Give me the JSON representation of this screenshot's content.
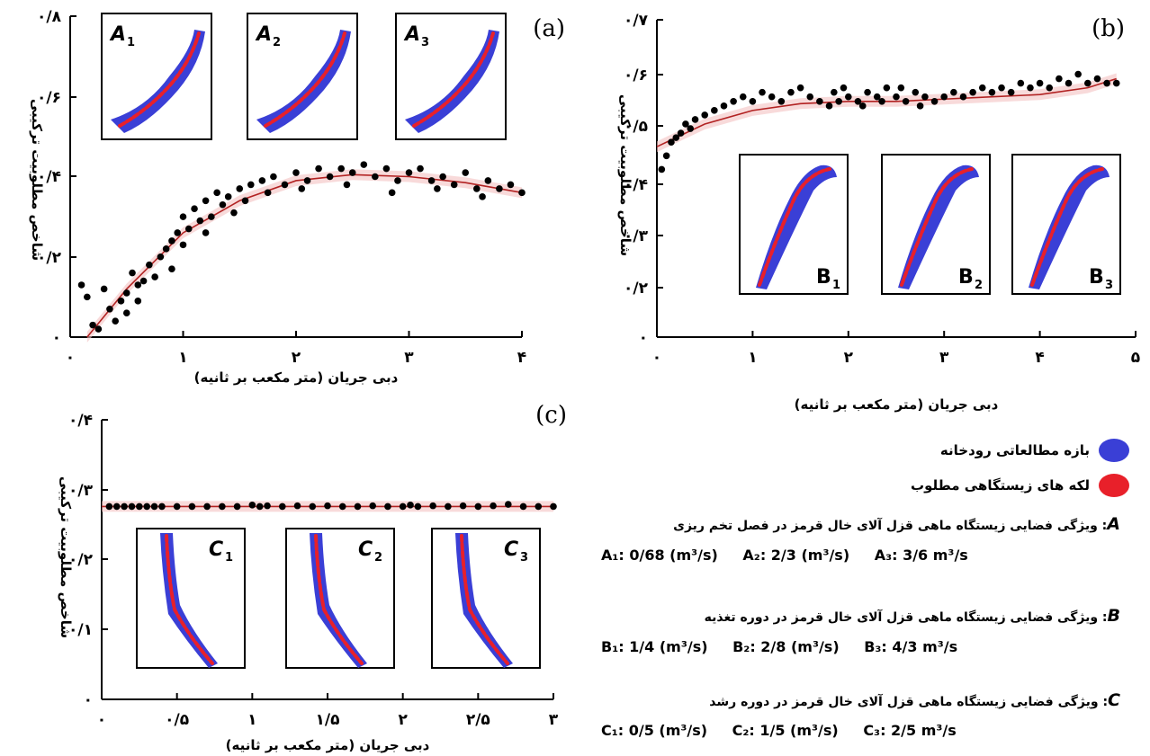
{
  "chart_data": [
    {
      "type": "scatter",
      "panel_label": "(a)",
      "xlabel": "دبی جریان (متر مکعب بر ثانیه)",
      "ylabel": "شاخص مطلوبیت ترکیبی",
      "xlim": [
        0,
        4
      ],
      "ylim": [
        0,
        0.8
      ],
      "x_ticks": [
        "۰",
        "۱",
        "۲",
        "۳",
        "۴"
      ],
      "y_ticks": [
        "۰",
        "۰/۲",
        "۰/۴",
        "۰/۶",
        "۰/۸"
      ],
      "fit_line": {
        "x": [
          0.15,
          0.5,
          1.0,
          1.5,
          2.0,
          2.5,
          3.0,
          3.5,
          4.0
        ],
        "y": [
          0.0,
          0.12,
          0.26,
          0.34,
          0.39,
          0.405,
          0.4,
          0.385,
          0.36
        ]
      },
      "points": [
        [
          0.1,
          0.13
        ],
        [
          0.15,
          0.1
        ],
        [
          0.2,
          0.03
        ],
        [
          0.25,
          0.02
        ],
        [
          0.3,
          0.12
        ],
        [
          0.35,
          0.07
        ],
        [
          0.4,
          0.04
        ],
        [
          0.45,
          0.09
        ],
        [
          0.5,
          0.11
        ],
        [
          0.5,
          0.06
        ],
        [
          0.55,
          0.16
        ],
        [
          0.6,
          0.13
        ],
        [
          0.6,
          0.09
        ],
        [
          0.65,
          0.14
        ],
        [
          0.7,
          0.18
        ],
        [
          0.75,
          0.15
        ],
        [
          0.8,
          0.2
        ],
        [
          0.85,
          0.22
        ],
        [
          0.9,
          0.24
        ],
        [
          0.9,
          0.17
        ],
        [
          0.95,
          0.26
        ],
        [
          1.0,
          0.3
        ],
        [
          1.0,
          0.23
        ],
        [
          1.05,
          0.27
        ],
        [
          1.1,
          0.32
        ],
        [
          1.15,
          0.29
        ],
        [
          1.2,
          0.34
        ],
        [
          1.25,
          0.3
        ],
        [
          1.3,
          0.36
        ],
        [
          1.35,
          0.33
        ],
        [
          1.4,
          0.35
        ],
        [
          1.5,
          0.37
        ],
        [
          1.55,
          0.34
        ],
        [
          1.6,
          0.38
        ],
        [
          1.7,
          0.39
        ],
        [
          1.75,
          0.36
        ],
        [
          1.8,
          0.4
        ],
        [
          1.9,
          0.38
        ],
        [
          2.0,
          0.41
        ],
        [
          2.1,
          0.39
        ],
        [
          2.2,
          0.42
        ],
        [
          2.3,
          0.4
        ],
        [
          2.4,
          0.42
        ],
        [
          2.5,
          0.41
        ],
        [
          2.6,
          0.43
        ],
        [
          2.7,
          0.4
        ],
        [
          2.8,
          0.42
        ],
        [
          2.9,
          0.39
        ],
        [
          3.0,
          0.41
        ],
        [
          3.1,
          0.42
        ],
        [
          3.2,
          0.39
        ],
        [
          3.3,
          0.4
        ],
        [
          3.4,
          0.38
        ],
        [
          3.5,
          0.41
        ],
        [
          3.6,
          0.37
        ],
        [
          3.7,
          0.39
        ],
        [
          3.8,
          0.37
        ],
        [
          3.9,
          0.38
        ],
        [
          4.0,
          0.36
        ],
        [
          1.2,
          0.26
        ],
        [
          1.45,
          0.31
        ],
        [
          2.05,
          0.37
        ],
        [
          2.45,
          0.38
        ],
        [
          2.85,
          0.36
        ],
        [
          3.25,
          0.37
        ],
        [
          3.65,
          0.35
        ]
      ],
      "insets": [
        {
          "label": "A",
          "sub": "1"
        },
        {
          "label": "A",
          "sub": "2"
        },
        {
          "label": "A",
          "sub": "3"
        }
      ]
    },
    {
      "type": "scatter",
      "panel_label": "(b)",
      "xlabel": "دبی جریان (متر مکعب بر ثانیه)",
      "ylabel": "شاخص مطلوبیت ترکیبی",
      "xlim": [
        0,
        5
      ],
      "ylim": [
        0,
        0.7
      ],
      "x_ticks": [
        "۰",
        "۱",
        "۲",
        "۳",
        "۴",
        "۵"
      ],
      "y_ticks": [
        "۰",
        "۰/۲",
        "۰/۳",
        "۰/۴",
        "۰/۵",
        "۰/۶",
        "۰/۷"
      ],
      "fit_line": {
        "x": [
          0.0,
          0.5,
          1.0,
          1.5,
          2.0,
          2.5,
          3.0,
          3.5,
          4.0,
          4.5,
          4.8
        ],
        "y": [
          0.42,
          0.47,
          0.5,
          0.515,
          0.52,
          0.52,
          0.525,
          0.53,
          0.535,
          0.55,
          0.57
        ]
      },
      "points": [
        [
          0.05,
          0.37
        ],
        [
          0.1,
          0.4
        ],
        [
          0.15,
          0.43
        ],
        [
          0.2,
          0.44
        ],
        [
          0.25,
          0.45
        ],
        [
          0.3,
          0.47
        ],
        [
          0.35,
          0.46
        ],
        [
          0.4,
          0.48
        ],
        [
          0.5,
          0.49
        ],
        [
          0.6,
          0.5
        ],
        [
          0.7,
          0.51
        ],
        [
          0.8,
          0.52
        ],
        [
          0.9,
          0.53
        ],
        [
          1.0,
          0.52
        ],
        [
          1.1,
          0.54
        ],
        [
          1.2,
          0.53
        ],
        [
          1.3,
          0.52
        ],
        [
          1.4,
          0.54
        ],
        [
          1.5,
          0.55
        ],
        [
          1.6,
          0.53
        ],
        [
          1.7,
          0.52
        ],
        [
          1.8,
          0.51
        ],
        [
          1.9,
          0.52
        ],
        [
          2.0,
          0.53
        ],
        [
          2.1,
          0.52
        ],
        [
          2.2,
          0.54
        ],
        [
          2.3,
          0.53
        ],
        [
          2.4,
          0.55
        ],
        [
          2.5,
          0.53
        ],
        [
          2.6,
          0.52
        ],
        [
          2.7,
          0.54
        ],
        [
          2.8,
          0.53
        ],
        [
          2.9,
          0.52
        ],
        [
          3.0,
          0.53
        ],
        [
          3.1,
          0.54
        ],
        [
          3.2,
          0.53
        ],
        [
          3.3,
          0.54
        ],
        [
          3.4,
          0.55
        ],
        [
          3.5,
          0.54
        ],
        [
          3.6,
          0.55
        ],
        [
          3.7,
          0.54
        ],
        [
          3.8,
          0.56
        ],
        [
          3.9,
          0.55
        ],
        [
          4.0,
          0.56
        ],
        [
          4.1,
          0.55
        ],
        [
          4.2,
          0.57
        ],
        [
          4.3,
          0.56
        ],
        [
          4.4,
          0.58
        ],
        [
          4.5,
          0.56
        ],
        [
          4.6,
          0.57
        ],
        [
          4.7,
          0.56
        ],
        [
          4.8,
          0.56
        ],
        [
          1.85,
          0.54
        ],
        [
          2.15,
          0.51
        ],
        [
          2.35,
          0.52
        ],
        [
          2.55,
          0.55
        ],
        [
          2.75,
          0.51
        ],
        [
          1.95,
          0.55
        ]
      ],
      "insets": [
        {
          "label": "B",
          "sub": "1"
        },
        {
          "label": "B",
          "sub": "2"
        },
        {
          "label": "B",
          "sub": "3"
        }
      ]
    },
    {
      "type": "scatter",
      "panel_label": "(c)",
      "xlabel": "دبی جریان (متر مکعب بر ثانیه)",
      "ylabel": "شاخص مطلوبیت ترکیبی",
      "xlim": [
        0,
        3
      ],
      "ylim": [
        0,
        0.4
      ],
      "x_ticks": [
        "۰",
        "۰/۵",
        "۱",
        "۱/۵",
        "۲",
        "۲/۵",
        "۳"
      ],
      "y_ticks": [
        "۰",
        "۰/۱",
        "۰/۲",
        "۰/۳",
        "۰/۴"
      ],
      "fit_line": {
        "x": [
          0.0,
          3.0
        ],
        "y": [
          0.276,
          0.276
        ]
      },
      "points": [
        [
          0.05,
          0.276
        ],
        [
          0.1,
          0.276
        ],
        [
          0.15,
          0.276
        ],
        [
          0.2,
          0.276
        ],
        [
          0.25,
          0.276
        ],
        [
          0.3,
          0.276
        ],
        [
          0.35,
          0.276
        ],
        [
          0.4,
          0.276
        ],
        [
          0.5,
          0.276
        ],
        [
          0.6,
          0.276
        ],
        [
          0.7,
          0.276
        ],
        [
          0.8,
          0.276
        ],
        [
          0.9,
          0.276
        ],
        [
          1.0,
          0.278
        ],
        [
          1.05,
          0.276
        ],
        [
          1.1,
          0.277
        ],
        [
          1.2,
          0.276
        ],
        [
          1.3,
          0.277
        ],
        [
          1.4,
          0.276
        ],
        [
          1.5,
          0.277
        ],
        [
          1.6,
          0.276
        ],
        [
          1.7,
          0.276
        ],
        [
          1.8,
          0.277
        ],
        [
          1.9,
          0.276
        ],
        [
          2.0,
          0.276
        ],
        [
          2.05,
          0.278
        ],
        [
          2.1,
          0.276
        ],
        [
          2.2,
          0.277
        ],
        [
          2.3,
          0.276
        ],
        [
          2.4,
          0.277
        ],
        [
          2.5,
          0.276
        ],
        [
          2.6,
          0.277
        ],
        [
          2.7,
          0.279
        ],
        [
          2.8,
          0.276
        ],
        [
          2.9,
          0.276
        ],
        [
          3.0,
          0.276
        ]
      ],
      "insets": [
        {
          "label": "C",
          "sub": "1"
        },
        {
          "label": "C",
          "sub": "2"
        },
        {
          "label": "C",
          "sub": "3"
        }
      ]
    }
  ],
  "legend": {
    "reach": {
      "label": "بازه مطالعاتی رودخانه",
      "color": "#3a3fd6"
    },
    "habitat": {
      "label": "لکه های زیستگاهی مطلوب",
      "color": "#e8202a"
    }
  },
  "descriptions": [
    {
      "letter": "A",
      "text": ": ویژگی فضایی زیستگاه ماهی قزل آلای خال قرمز در فصل تخم ریزی",
      "values": [
        "A₁: 0/68 (m³/s)",
        "A₂: 2/3 (m³/s)",
        "A₃: 3/6 m³/s"
      ]
    },
    {
      "letter": "B",
      "text": ": ویژگی فضایی زیستگاه ماهی قزل آلای خال قرمز در دوره تغذیه",
      "values": [
        "B₁: 1/4 (m³/s)",
        "B₂: 2/8 (m³/s)",
        "B₃: 4/3 m³/s"
      ]
    },
    {
      "letter": "C",
      "text": ": ویژگی فضایی زیستگاه ماهی قزل آلای خال قرمز در دوره رشد",
      "values": [
        "C₁: 0/5 (m³/s)",
        "C₂: 1/5 (m³/s)",
        "C₃: 2/5 m³/s"
      ]
    }
  ],
  "colors": {
    "reach": "#3a3fd6",
    "habitat": "#e8202a",
    "fit": "#b22222",
    "band": "#f4c2c2",
    "point": "#000000"
  }
}
